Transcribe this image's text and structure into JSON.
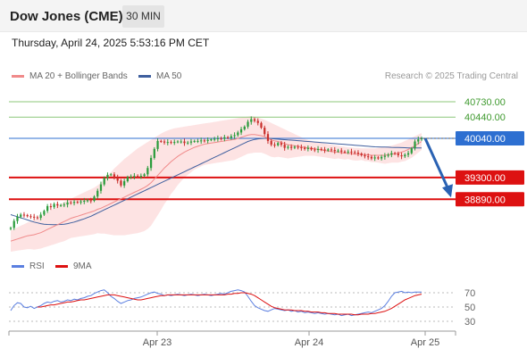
{
  "header": {
    "title": "Dow Jones (CME)",
    "timeframe": "30 MIN",
    "datetime": "Thursday, April 24, 2025 5:53:16 PM CET"
  },
  "legend": {
    "ma20_bb": "MA 20 + Bollinger Bands",
    "ma50": "MA 50",
    "credit": "Research © 2025 Trading Central",
    "rsi": "RSI",
    "rsi_ma": "9MA"
  },
  "colors": {
    "candle_up": "#2b9c3c",
    "candle_down": "#c9302c",
    "ma20": "#f08a8a",
    "bollinger_fill": "#fde0e0",
    "ma50": "#3f5f9e",
    "support": "#dd1111",
    "resistance": "#8cc77a",
    "pivot": "#2d6fd1",
    "arrow": "#2a62b3",
    "rsi": "#5b7fe0",
    "rsi_ma": "#dd1111"
  },
  "chart_data": [
    {
      "type": "candlestick",
      "title": "Dow Jones (CME)",
      "ylim": [
        37850,
        41050
      ],
      "x_ticks": [
        "Apr 23",
        "Apr 24",
        "Apr 25"
      ],
      "levels": [
        {
          "value": 40730,
          "label": "40730.00",
          "kind": "resistance"
        },
        {
          "value": 40440,
          "label": "40440.00",
          "kind": "resistance"
        },
        {
          "value": 40040,
          "label": "40040.00",
          "kind": "pivot"
        },
        {
          "value": 39300,
          "label": "39300.00",
          "kind": "support"
        },
        {
          "value": 38890,
          "label": "38890.00",
          "kind": "support"
        }
      ],
      "close": [
        38350,
        38480,
        38560,
        38600,
        38590,
        38570,
        38560,
        38550,
        38540,
        38600,
        38670,
        38760,
        38740,
        38800,
        38770,
        38780,
        38790,
        38830,
        38820,
        38840,
        38830,
        38850,
        38860,
        38870,
        38860,
        38940,
        39050,
        39170,
        39290,
        39350,
        39360,
        39300,
        39240,
        39150,
        39230,
        39310,
        39320,
        39330,
        39320,
        39330,
        39360,
        39480,
        39670,
        39840,
        39990,
        39980,
        39960,
        39970,
        39960,
        39970,
        39980,
        39980,
        39950,
        39960,
        39980,
        39990,
        39990,
        40000,
        39990,
        40010,
        40020,
        40030,
        40040,
        40030,
        40060,
        40050,
        40080,
        40100,
        40150,
        40210,
        40260,
        40350,
        40400,
        40370,
        40330,
        40240,
        40120,
        39990,
        39920,
        39910,
        39950,
        39920,
        39860,
        39880,
        39860,
        39880,
        39870,
        39860,
        39840,
        39860,
        39830,
        39820,
        39840,
        39830,
        39810,
        39830,
        39820,
        39800,
        39810,
        39790,
        39780,
        39790,
        39780,
        39770,
        39750,
        39720,
        39700,
        39690,
        39660,
        39680,
        39660,
        39690,
        39710,
        39730,
        39760,
        39750,
        39720,
        39700,
        39730,
        39760,
        39850,
        39980,
        40020,
        40040
      ],
      "ma20": [
        38100,
        38120,
        38140,
        38160,
        38180,
        38200,
        38210,
        38220,
        38240,
        38260,
        38290,
        38320,
        38350,
        38380,
        38410,
        38440,
        38470,
        38500,
        38530,
        38550,
        38570,
        38590,
        38610,
        38630,
        38650,
        38670,
        38700,
        38720,
        38750,
        38780,
        38810,
        38840,
        38870,
        38900,
        38930,
        38960,
        38990,
        39020,
        39050,
        39080,
        39110,
        39150,
        39200,
        39270,
        39340,
        39410,
        39480,
        39540,
        39600,
        39650,
        39700,
        39740,
        39780,
        39810,
        39840,
        39870,
        39890,
        39910,
        39930,
        39940,
        39950,
        39960,
        39970,
        39980,
        39990,
        40000,
        40010,
        40020,
        40040,
        40060,
        40080,
        40100,
        40110,
        40110,
        40100,
        40090,
        40070,
        40040,
        40010,
        39990,
        39980,
        39960,
        39940,
        39920,
        39910,
        39900,
        39890,
        39880,
        39870,
        39860,
        39850,
        39840,
        39830,
        39820,
        39810,
        39800,
        39790,
        39780,
        39780,
        39770,
        39760,
        39760,
        39750,
        39740,
        39740,
        39740,
        39730,
        39730,
        39720,
        39720,
        39720,
        39720,
        39720,
        39730,
        39740,
        39750,
        39760,
        39780,
        39800,
        39830,
        39860,
        39900,
        39940,
        39980
      ],
      "bb_upper": [
        38300,
        38330,
        38360,
        38390,
        38420,
        38450,
        38470,
        38500,
        38530,
        38560,
        38600,
        38640,
        38680,
        38720,
        38760,
        38800,
        38840,
        38870,
        38900,
        38930,
        38960,
        38990,
        39020,
        39050,
        39080,
        39110,
        39150,
        39200,
        39260,
        39330,
        39400,
        39470,
        39530,
        39590,
        39650,
        39700,
        39750,
        39800,
        39850,
        39890,
        39930,
        39970,
        40010,
        40050,
        40090,
        40130,
        40160,
        40190,
        40210,
        40230,
        40240,
        40250,
        40260,
        40270,
        40280,
        40290,
        40300,
        40310,
        40320,
        40330,
        40340,
        40350,
        40360,
        40370,
        40380,
        40390,
        40400,
        40410,
        40420,
        40430,
        40440,
        40450,
        40460,
        40450,
        40430,
        40410,
        40390,
        40360,
        40330,
        40300,
        40270,
        40240,
        40210,
        40180,
        40150,
        40120,
        40090,
        40060,
        40030,
        40010,
        39990,
        39970,
        39960,
        39950,
        39940,
        39930,
        39920,
        39910,
        39900,
        39890,
        39880,
        39870,
        39870,
        39860,
        39860,
        39850,
        39850,
        39850,
        39850,
        39850,
        39860,
        39870,
        39880,
        39890,
        39900,
        39920,
        39940,
        39960,
        39990,
        40020,
        40050,
        40080,
        40110,
        40140
      ],
      "bb_lower": [
        37900,
        37910,
        37920,
        37930,
        37940,
        37950,
        37950,
        37940,
        37950,
        37960,
        37980,
        38000,
        38020,
        38040,
        38060,
        38080,
        38100,
        38130,
        38160,
        38170,
        38180,
        38190,
        38200,
        38210,
        38220,
        38230,
        38250,
        38240,
        38240,
        38230,
        38220,
        38210,
        38210,
        38210,
        38210,
        38220,
        38230,
        38240,
        38250,
        38270,
        38290,
        38330,
        38390,
        38490,
        38590,
        38690,
        38800,
        38890,
        38990,
        39070,
        39160,
        39230,
        39300,
        39350,
        39400,
        39450,
        39480,
        39510,
        39540,
        39550,
        39560,
        39570,
        39580,
        39590,
        39600,
        39610,
        39620,
        39630,
        39660,
        39690,
        39720,
        39750,
        39760,
        39770,
        39770,
        39770,
        39750,
        39720,
        39690,
        39680,
        39690,
        39680,
        39670,
        39660,
        39670,
        39680,
        39690,
        39700,
        39710,
        39710,
        39710,
        39710,
        39700,
        39690,
        39680,
        39670,
        39660,
        39650,
        39660,
        39650,
        39640,
        39650,
        39630,
        39620,
        39620,
        39630,
        39610,
        39610,
        39590,
        39590,
        39580,
        39570,
        39560,
        39570,
        39580,
        39580,
        39580,
        39600,
        39610,
        39640,
        39670,
        39720,
        39770,
        39820
      ],
      "ma50": [
        38600,
        38580,
        38560,
        38540,
        38520,
        38500,
        38480,
        38460,
        38445,
        38430,
        38420,
        38415,
        38412,
        38410,
        38412,
        38415,
        38420,
        38430,
        38445,
        38460,
        38480,
        38500,
        38520,
        38545,
        38570,
        38600,
        38630,
        38660,
        38690,
        38720,
        38750,
        38780,
        38810,
        38840,
        38870,
        38900,
        38930,
        38960,
        38990,
        39020,
        39050,
        39080,
        39110,
        39140,
        39170,
        39200,
        39230,
        39260,
        39290,
        39320,
        39350,
        39380,
        39410,
        39440,
        39470,
        39500,
        39530,
        39560,
        39590,
        39620,
        39650,
        39680,
        39710,
        39740,
        39770,
        39800,
        39830,
        39860,
        39890,
        39920,
        39950,
        39980,
        40000,
        40020,
        40030,
        40035,
        40040,
        40040,
        40035,
        40030,
        40025,
        40020,
        40015,
        40010,
        40005,
        40000,
        39995,
        39990,
        39985,
        39980,
        39975,
        39970,
        39965,
        39960,
        39955,
        39950,
        39945,
        39940,
        39935,
        39930,
        39925,
        39920,
        39915,
        39910,
        39905,
        39900,
        39895,
        39890,
        39885,
        39880,
        39878,
        39876,
        39874,
        39872,
        39870,
        39868,
        39866,
        39864,
        39862,
        39860,
        39860,
        39860,
        39860,
        39860
      ],
      "projection": {
        "from": 40040,
        "to": 38890
      }
    },
    {
      "type": "line",
      "title": "RSI",
      "ylim": [
        20,
        90
      ],
      "y_ticks": [
        70,
        50,
        30
      ],
      "series": [
        {
          "name": "RSI",
          "values": [
            45,
            52,
            56,
            55,
            50,
            49,
            51,
            48,
            50,
            52,
            55,
            57,
            56,
            58,
            59,
            57,
            58,
            60,
            59,
            61,
            60,
            62,
            63,
            65,
            66,
            69,
            71,
            73,
            74,
            70,
            65,
            62,
            58,
            55,
            57,
            59,
            60,
            62,
            63,
            64,
            66,
            68,
            70,
            71,
            69,
            68,
            66,
            67,
            66,
            67,
            68,
            67,
            66,
            67,
            68,
            67,
            66,
            67,
            68,
            67,
            66,
            67,
            68,
            69,
            68,
            70,
            72,
            73,
            74,
            73,
            71,
            65,
            58,
            52,
            49,
            47,
            45,
            44,
            46,
            48,
            47,
            46,
            45,
            46,
            44,
            45,
            43,
            44,
            42,
            43,
            42,
            41,
            42,
            41,
            40,
            41,
            40,
            39,
            40,
            38,
            39,
            40,
            38,
            39,
            40,
            41,
            42,
            43,
            42,
            44,
            46,
            48,
            52,
            58,
            65,
            70,
            71,
            72,
            70,
            71,
            70,
            71,
            71,
            71
          ]
        },
        {
          "name": "9MA",
          "values": [
            null,
            null,
            null,
            null,
            null,
            null,
            null,
            null,
            50,
            50,
            51,
            52,
            53,
            53,
            54,
            55,
            56,
            57,
            57,
            58,
            59,
            60,
            60,
            61,
            62,
            63,
            64,
            65,
            66,
            67,
            67,
            67,
            66,
            65,
            64,
            63,
            62,
            61,
            60,
            60,
            61,
            62,
            63,
            64,
            65,
            66,
            66,
            67,
            67,
            67,
            67,
            67,
            67,
            67,
            67,
            67,
            67,
            67,
            67,
            67,
            67,
            67,
            67,
            67,
            67,
            68,
            68,
            69,
            69,
            70,
            70,
            69,
            68,
            66,
            63,
            60,
            57,
            54,
            51,
            49,
            48,
            47,
            46,
            46,
            46,
            45,
            45,
            45,
            44,
            44,
            43,
            43,
            43,
            42,
            42,
            41,
            41,
            41,
            40,
            40,
            40,
            40,
            40,
            39,
            39,
            40,
            40,
            40,
            41,
            41,
            42,
            43,
            44,
            46,
            48,
            51,
            54,
            57,
            60,
            62,
            64,
            66,
            67,
            68
          ]
        }
      ]
    }
  ]
}
